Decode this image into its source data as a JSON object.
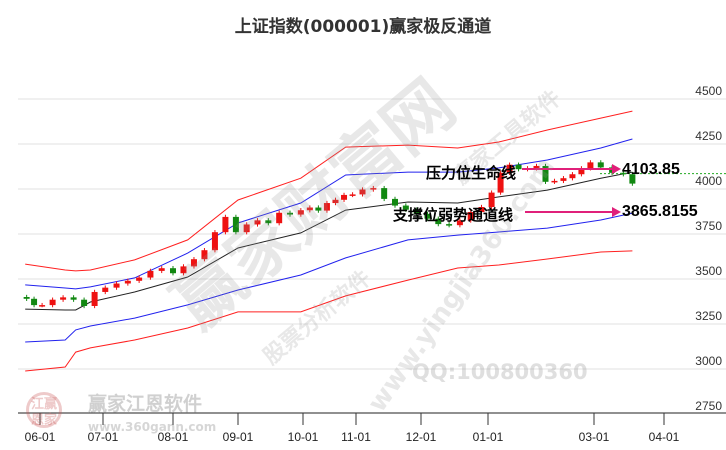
{
  "chart_data": {
    "type": "line",
    "title": "上证指数(000001)赢家极反通道",
    "y_axis": {
      "position": "right",
      "ticks": [
        2750,
        3000,
        3250,
        3500,
        3750,
        4000,
        4250,
        4500
      ],
      "range": [
        2750,
        4600
      ],
      "grid": true
    },
    "x_axis": {
      "ticks": [
        "06-01",
        "07-01",
        "08-01",
        "09-01",
        "10-01",
        "11-01",
        "12-01",
        "01-01",
        "03-01",
        "04-01"
      ]
    },
    "colors": {
      "candle_up": "#ee1111",
      "candle_down": "#118811",
      "outer_band": "#ff2020",
      "inner_band": "#2222ee",
      "middle": "#222222",
      "arrow": "#e0207a",
      "last_line": "#22aa22"
    },
    "candles": {
      "dates": [
        "05-23",
        "05-28",
        "06-02",
        "06-07",
        "06-12",
        "06-17",
        "06-22",
        "06-27",
        "07-02",
        "07-07",
        "07-12",
        "07-17",
        "07-22",
        "07-27",
        "08-01",
        "08-06",
        "08-11",
        "08-16",
        "08-21",
        "08-26",
        "08-31",
        "09-05",
        "09-10",
        "09-15",
        "09-20",
        "09-25",
        "09-30",
        "10-05",
        "10-10",
        "10-15",
        "10-20",
        "10-25",
        "10-30",
        "11-04",
        "11-09",
        "11-14",
        "11-19",
        "11-24",
        "11-29",
        "12-04",
        "12-09",
        "12-14",
        "12-19",
        "12-24",
        "12-29",
        "01-03",
        "01-08",
        "01-13",
        "01-18",
        "01-23",
        "01-28",
        "02-02",
        "02-07",
        "02-12",
        "02-17",
        "02-22",
        "02-27",
        "03-04",
        "03-09",
        "03-14",
        "03-18"
      ],
      "close": [
        3390,
        3355,
        3355,
        3385,
        3398,
        3385,
        3350,
        3428,
        3452,
        3475,
        3490,
        3508,
        3545,
        3560,
        3532,
        3570,
        3610,
        3660,
        3760,
        3845,
        3760,
        3803,
        3826,
        3810,
        3868,
        3858,
        3882,
        3897,
        3880,
        3922,
        3940,
        3967,
        3970,
        3997,
        4005,
        3945,
        3908,
        3885,
        3862,
        3835,
        3805,
        3799,
        3825,
        3872,
        3900,
        3980,
        4090,
        4135,
        4110,
        4115,
        4128,
        4040,
        4045,
        4060,
        4082,
        4115,
        4148,
        4120,
        4090,
        4082,
        4030
      ]
    },
    "bands": {
      "dates": [
        "05-22",
        "06-13",
        "06-18",
        "06-25",
        "07-15",
        "08-08",
        "09-01",
        "09-30",
        "10-26",
        "11-25",
        "12-18",
        "01-07",
        "02-03",
        "03-04",
        "03-18"
      ],
      "series": [
        {
          "key": "outer_upper",
          "values": [
            3583,
            3550,
            3545,
            3550,
            3606,
            3717,
            3939,
            4060,
            4233,
            4244,
            4228,
            4261,
            4328,
            4394,
            4433
          ]
        },
        {
          "key": "inner_upper",
          "values": [
            3467,
            3450,
            3445,
            3456,
            3506,
            3644,
            3811,
            3922,
            4078,
            4094,
            4094,
            4117,
            4161,
            4228,
            4278
          ]
        },
        {
          "key": "middle",
          "values": [
            3333,
            3328,
            3328,
            3372,
            3428,
            3511,
            3672,
            3756,
            3883,
            3928,
            3922,
            3956,
            3994,
            4060,
            4094
          ]
        },
        {
          "key": "inner_lower",
          "values": [
            3150,
            3161,
            3217,
            3239,
            3283,
            3356,
            3439,
            3522,
            3617,
            3717,
            3744,
            3761,
            3783,
            3828,
            3866
          ]
        },
        {
          "key": "outer_lower",
          "values": [
            2989,
            3011,
            3094,
            3117,
            3161,
            3228,
            3317,
            3317,
            3406,
            3494,
            3561,
            3578,
            3611,
            3650,
            3656
          ]
        }
      ]
    },
    "annotations": [
      {
        "label": "压力位生命线",
        "value": "4103.85"
      },
      {
        "label": "支撑位弱势通道线",
        "value": "3865.8155"
      }
    ]
  },
  "watermarks": {
    "main": "赢家财富网",
    "sub": "股票分析软件",
    "site": "www.yingjia360.com",
    "tools": "赢家工具软件",
    "logo_text": "赢家江恩软件",
    "logo_seal": "江赢恩家",
    "logo_site": "www.360gann.com",
    "qq": "QQ:100800360"
  }
}
